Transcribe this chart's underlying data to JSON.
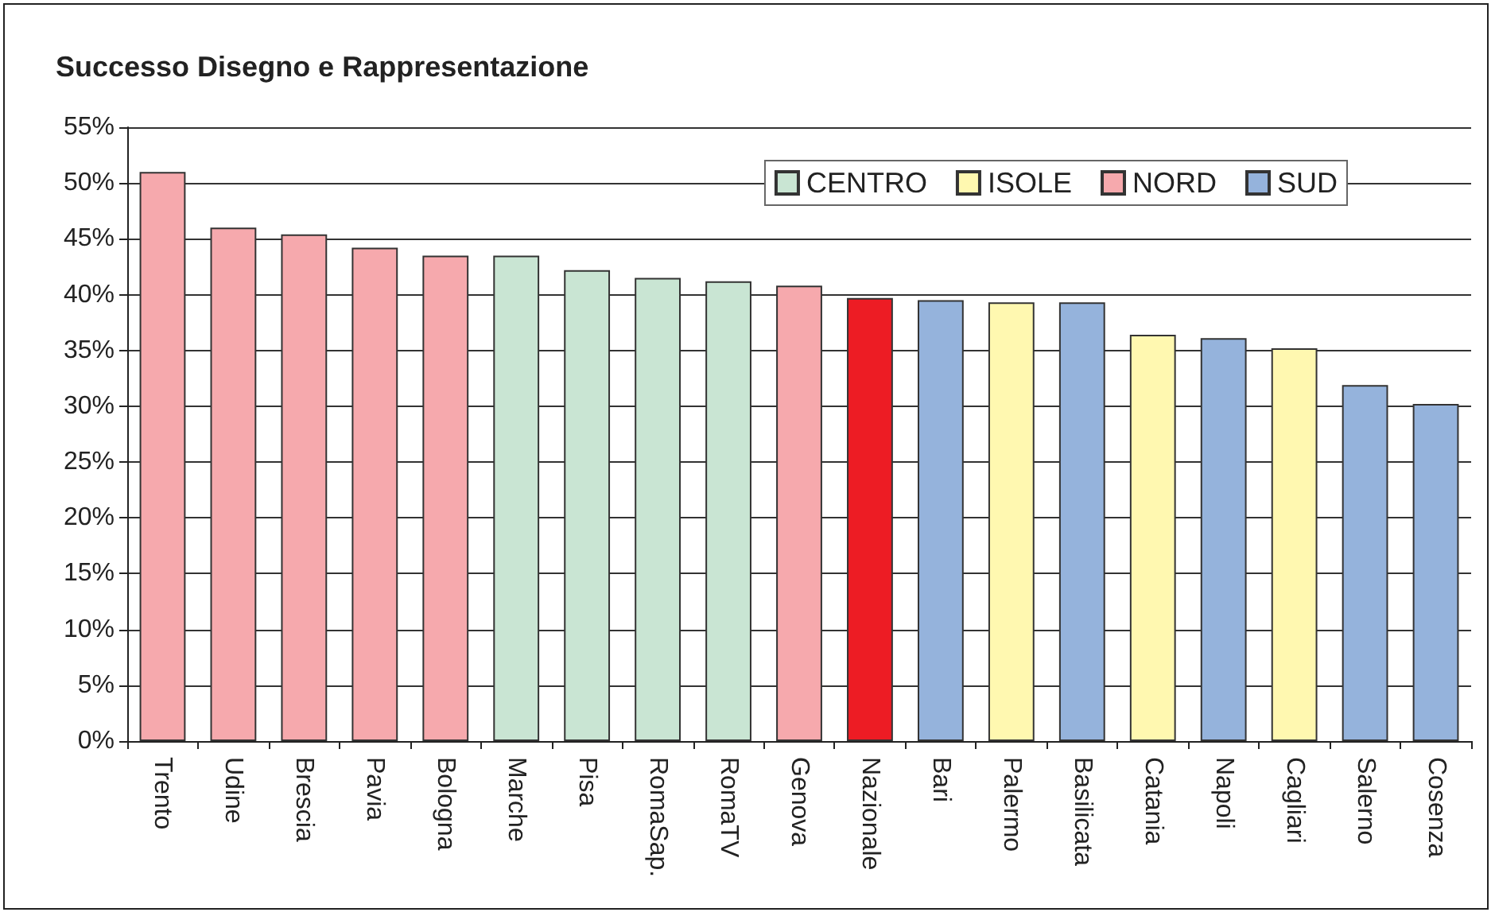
{
  "chart_data": {
    "type": "bar",
    "title": "Successo Disegno e Rappresentazione",
    "categories": [
      "Trento",
      "Udine",
      "Brescia",
      "Pavia",
      "Bologna",
      "Marche",
      "Pisa",
      "RomaSap.",
      "RomaTV",
      "Genova",
      "Nazionale",
      "Bari",
      "Palermo",
      "Basilicata",
      "Catania",
      "Napoli",
      "Cagliari",
      "Salerno",
      "Cosenza"
    ],
    "series": [
      {
        "name": "CENTRO",
        "color": "#c9e5d3",
        "values": [
          null,
          null,
          null,
          null,
          null,
          43.5,
          42.2,
          41.5,
          41.2,
          null,
          null,
          null,
          null,
          null,
          null,
          null,
          null,
          null,
          null
        ]
      },
      {
        "name": "ISOLE",
        "color": "#fff8b0",
        "values": [
          null,
          null,
          null,
          null,
          null,
          null,
          null,
          null,
          null,
          null,
          null,
          null,
          39.3,
          null,
          36.4,
          null,
          35.2,
          null,
          null
        ]
      },
      {
        "name": "NORD",
        "color": "#f6a9ad",
        "values": [
          51.0,
          46.0,
          45.4,
          44.2,
          43.5,
          null,
          null,
          null,
          null,
          40.8,
          null,
          null,
          null,
          null,
          null,
          null,
          null,
          null,
          null
        ]
      },
      {
        "name": "SUD",
        "color": "#95b3dc",
        "values": [
          null,
          null,
          null,
          null,
          null,
          null,
          null,
          null,
          null,
          null,
          null,
          39.5,
          null,
          39.3,
          null,
          36.1,
          null,
          31.9,
          30.2
        ]
      },
      {
        "color": "#ed1c24",
        "values": [
          null,
          null,
          null,
          null,
          null,
          null,
          null,
          null,
          null,
          null,
          39.7,
          null,
          null,
          null,
          null,
          null,
          null,
          null,
          null
        ]
      }
    ],
    "stacked": true,
    "ylim": [
      0,
      55
    ],
    "yticks": [
      {
        "value": 0,
        "label": "0%"
      },
      {
        "value": 5,
        "label": "5%"
      },
      {
        "value": 10,
        "label": "10%"
      },
      {
        "value": 15,
        "label": "15%"
      },
      {
        "value": 20,
        "label": "20%"
      },
      {
        "value": 25,
        "label": "25%"
      },
      {
        "value": 30,
        "label": "30%"
      },
      {
        "value": 35,
        "label": "35%"
      },
      {
        "value": 40,
        "label": "40%"
      },
      {
        "value": 45,
        "label": "45%"
      },
      {
        "value": 50,
        "label": "50%"
      },
      {
        "value": 55,
        "label": "55%"
      }
    ],
    "grid": "y",
    "legend": "top right"
  }
}
